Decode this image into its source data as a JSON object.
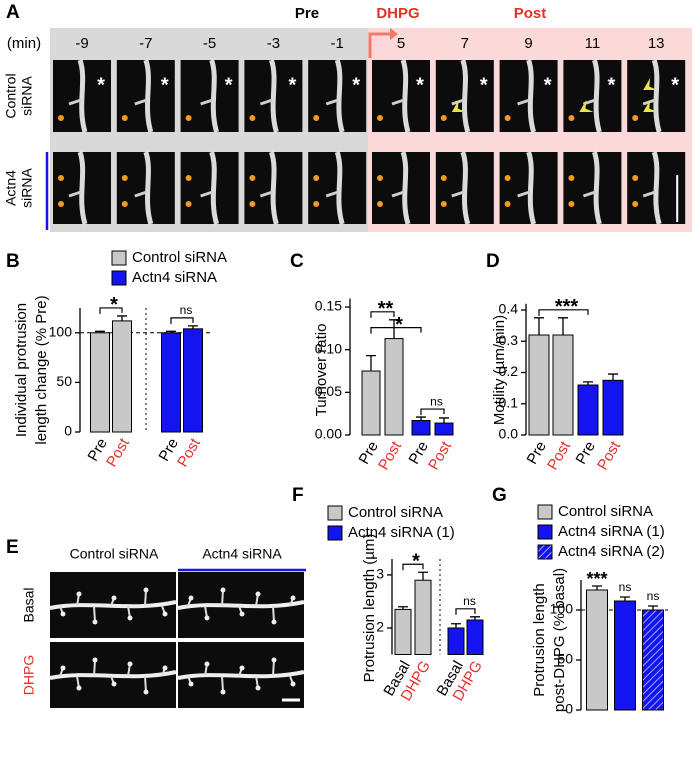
{
  "panel_a": {
    "letter": "A",
    "phases": [
      "Pre",
      "DHPG",
      "Post"
    ],
    "phase_colors": [
      "#000000",
      "#e8302a",
      "#e8302a"
    ],
    "time_unit": "(min)",
    "times": [
      -9,
      -7,
      -5,
      -3,
      -1,
      5,
      7,
      9,
      11,
      13
    ],
    "rows": [
      [
        "Control",
        "siRNA"
      ],
      [
        "Actn4",
        "siRNA"
      ]
    ],
    "marker": "*"
  },
  "panel_e": {
    "letter": "E",
    "columns": [
      "Control siRNA",
      "Actn4 siRNA"
    ],
    "rows": [
      "Basal",
      "DHPG"
    ],
    "row_colors": [
      "#000000",
      "#e8302a"
    ]
  },
  "chart_data": [
    {
      "letter": "B",
      "type": "bar",
      "ylabel": [
        "Individual protrusion",
        "length change (% Pre)"
      ],
      "categories": [
        "Pre",
        "Post",
        "Pre",
        "Post"
      ],
      "category_colors": [
        "#000000",
        "#e8302a",
        "#000000",
        "#e8302a"
      ],
      "series": [
        {
          "name": "Control siRNA",
          "color": "#c8c8c8",
          "values": [
            100,
            112,
            null,
            null
          ],
          "errors": [
            1.5,
            5,
            null,
            null
          ]
        },
        {
          "name": "Actn4 siRNA",
          "color": "#1414f0",
          "values": [
            null,
            null,
            100,
            104
          ],
          "errors": [
            null,
            null,
            1.5,
            3
          ]
        }
      ],
      "ylim": [
        0,
        125
      ],
      "yticks": [
        0,
        50,
        100
      ],
      "ref_line": 100,
      "annotations": [
        "*",
        "ns"
      ]
    },
    {
      "letter": "C",
      "type": "bar",
      "ylabel": [
        "Turnover ratio"
      ],
      "categories": [
        "Pre",
        "Post",
        "Pre",
        "Post"
      ],
      "category_colors": [
        "#000000",
        "#e8302a",
        "#000000",
        "#e8302a"
      ],
      "series": [
        {
          "color": "#c8c8c8",
          "values": [
            0.075,
            0.113,
            null,
            null
          ],
          "errors": [
            0.018,
            0.022,
            null,
            null
          ]
        },
        {
          "color": "#1414f0",
          "values": [
            null,
            null,
            0.017,
            0.014
          ],
          "errors": [
            null,
            null,
            0.004,
            0.006
          ]
        }
      ],
      "ylim": [
        0,
        0.16
      ],
      "yticks": [
        {
          "value": 0,
          "label": "0.00"
        },
        0.05,
        {
          "value": 0.1,
          "label": "0.10"
        },
        0.15
      ],
      "annotations": [
        "*",
        "**",
        "ns"
      ]
    },
    {
      "letter": "D",
      "type": "bar",
      "ylabel": [
        "Motility (µm/min)"
      ],
      "categories": [
        "Pre",
        "Post",
        "Pre",
        "Post"
      ],
      "category_colors": [
        "#000000",
        "#e8302a",
        "#000000",
        "#e8302a"
      ],
      "series": [
        {
          "color": "#c8c8c8",
          "values": [
            0.32,
            0.32,
            null,
            null
          ],
          "errors": [
            0.055,
            0.055,
            null,
            null
          ]
        },
        {
          "color": "#1414f0",
          "values": [
            null,
            null,
            0.16,
            0.175
          ],
          "errors": [
            null,
            null,
            0.01,
            0.02
          ]
        }
      ],
      "ylim": [
        0,
        0.42
      ],
      "yticks": [
        {
          "value": 0,
          "label": "0.0"
        },
        0.1,
        0.2,
        0.3,
        0.4
      ],
      "annotations": [
        "***"
      ]
    },
    {
      "letter": "F",
      "type": "bar",
      "ylabel": [
        "Protrusion length (µm)"
      ],
      "categories": [
        "Basal",
        "DHPG",
        "Basal",
        "DHPG"
      ],
      "category_colors": [
        "#000000",
        "#e8302a",
        "#000000",
        "#e8302a"
      ],
      "series": [
        {
          "name": "Control siRNA",
          "color": "#c8c8c8",
          "values": [
            2.35,
            2.9,
            null,
            null
          ],
          "errors": [
            0.05,
            0.15,
            null,
            null
          ]
        },
        {
          "name": "Actn4 siRNA (1)",
          "color": "#1414f0",
          "values": [
            null,
            null,
            2.0,
            2.15
          ],
          "errors": [
            null,
            null,
            0.08,
            0.06
          ]
        }
      ],
      "ylim": [
        1.5,
        3.3
      ],
      "yticks": [
        2,
        3
      ],
      "annotations": [
        "*",
        "ns"
      ]
    },
    {
      "letter": "G",
      "type": "bar",
      "ylabel": [
        "Protrusion length",
        "post-DHPG (% basal)"
      ],
      "categories": [
        null,
        null,
        null
      ],
      "series": [
        {
          "name": "Control siRNA",
          "color": "#c8c8c8",
          "values": [
            120,
            null,
            null
          ],
          "errors": [
            4,
            null,
            null
          ]
        },
        {
          "name": "Actn4 siRNA (1)",
          "color": "#1414f0",
          "values": [
            null,
            109,
            null
          ],
          "errors": [
            null,
            4,
            null
          ]
        },
        {
          "name": "Actn4 siRNA (2)",
          "color": "#1414f0",
          "hatch": true,
          "values": [
            null,
            null,
            100
          ],
          "errors": [
            null,
            null,
            4
          ]
        }
      ],
      "ylim": [
        0,
        130
      ],
      "yticks": [
        0,
        50,
        100
      ],
      "ref_line": 100,
      "annotations": [
        "***",
        "ns",
        "ns"
      ]
    }
  ]
}
